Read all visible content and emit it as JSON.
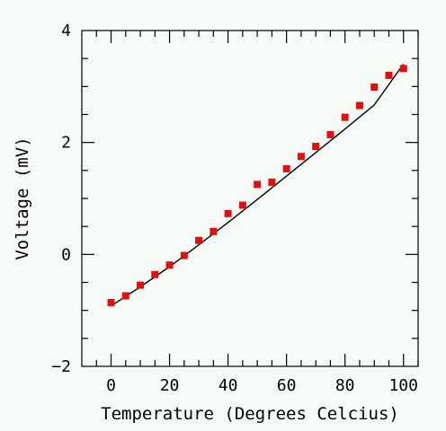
{
  "chart_data": {
    "type": "scatter",
    "title": "",
    "xlabel": "Temperature (Degrees Celcius)",
    "ylabel": "Voltage (mV)",
    "xlim": [
      -10,
      105
    ],
    "ylim": [
      -2,
      4
    ],
    "x_ticks": [
      0,
      20,
      40,
      60,
      80,
      100
    ],
    "y_ticks": [
      -2,
      0,
      2,
      4
    ],
    "x_tick_labels": [
      "0",
      "20",
      "40",
      "60",
      "80",
      "100"
    ],
    "y_tick_labels": [
      "−2",
      "0",
      "2",
      "4"
    ],
    "grid": false,
    "series": [
      {
        "x": [
          0,
          5,
          10,
          15,
          20,
          25,
          30,
          35,
          40,
          45,
          50,
          55,
          60,
          65,
          70,
          75,
          80,
          85,
          90,
          95,
          100
        ],
        "y": [
          -0.86,
          -0.74,
          -0.55,
          -0.36,
          -0.19,
          -0.02,
          0.25,
          0.41,
          0.73,
          0.88,
          1.25,
          1.29,
          1.53,
          1.75,
          1.93,
          2.14,
          2.45,
          2.66,
          2.99,
          3.2,
          3.32
        ],
        "color": "#e01010",
        "marker": "square"
      }
    ],
    "fit_line": {
      "x": [
        0,
        10,
        20,
        30,
        40,
        50,
        60,
        70,
        80,
        90,
        100
      ],
      "y": [
        -0.92,
        -0.58,
        -0.22,
        0.17,
        0.57,
        0.98,
        1.4,
        1.82,
        2.24,
        2.67,
        3.4
      ],
      "color": "#000000"
    }
  }
}
